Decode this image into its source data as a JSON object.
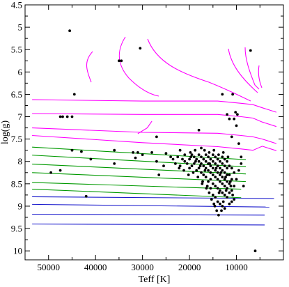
{
  "chart_data": {
    "type": "scatter",
    "title": "",
    "xlabel": "Teff [K]",
    "ylabel": "log(g)",
    "x_reversed": true,
    "y_reversed": true,
    "xlim": [
      55000,
      0
    ],
    "ylim": [
      4.5,
      10.2
    ],
    "grid": false,
    "legend": "none",
    "x_ticks": [
      50000,
      40000,
      30000,
      20000,
      10000
    ],
    "x_tick_labels": [
      "50000",
      "40000",
      "30000",
      "20000",
      "10000"
    ],
    "y_ticks": [
      4.5,
      5,
      5.5,
      6,
      6.5,
      7,
      7.5,
      8,
      8.5,
      9,
      9.5,
      10
    ],
    "y_tick_labels": [
      "4.5",
      "5",
      "5.5",
      "6",
      "6.5",
      "7",
      "7.5",
      "8",
      "8.5",
      "9",
      "9.5",
      "10"
    ],
    "colors": {
      "points": "#000000",
      "magenta": "#ff00ff",
      "green": "#009900",
      "blue": "#1a1acc",
      "axis": "#000000"
    },
    "series": [
      {
        "values_xy": [
          [
            45500,
            5.08
          ],
          [
            35000,
            5.75
          ],
          [
            34500,
            5.75
          ],
          [
            30500,
            5.47
          ],
          [
            7000,
            5.52
          ],
          [
            44500,
            6.5
          ],
          [
            47500,
            7.0
          ],
          [
            47000,
            7.0
          ],
          [
            46000,
            7.0
          ],
          [
            45000,
            7.0
          ],
          [
            13000,
            6.5
          ],
          [
            10800,
            6.5
          ],
          [
            10200,
            6.9
          ],
          [
            9800,
            6.95
          ],
          [
            11500,
            7.05
          ],
          [
            10500,
            7.05
          ],
          [
            12000,
            6.95
          ],
          [
            18000,
            7.3
          ],
          [
            10000,
            7.2
          ],
          [
            27000,
            7.45
          ],
          [
            49500,
            8.25
          ],
          [
            47500,
            8.2
          ],
          [
            45000,
            7.75
          ],
          [
            43000,
            7.78
          ],
          [
            41000,
            7.95
          ],
          [
            36000,
            7.75
          ],
          [
            36000,
            8.05
          ],
          [
            32000,
            7.8
          ],
          [
            31000,
            7.8
          ],
          [
            31500,
            7.92
          ],
          [
            30000,
            7.85
          ],
          [
            28000,
            7.8
          ],
          [
            27000,
            8.0
          ],
          [
            25000,
            7.82
          ],
          [
            22000,
            7.75
          ],
          [
            21000,
            8.0
          ],
          [
            42000,
            8.78
          ],
          [
            17500,
            7.7
          ],
          [
            11000,
            7.45
          ],
          [
            9500,
            7.6
          ],
          [
            9000,
            7.9
          ],
          [
            9500,
            8.2
          ],
          [
            10000,
            8.4
          ],
          [
            8500,
            8.55
          ],
          [
            9000,
            8.05
          ],
          [
            23500,
            7.95
          ],
          [
            23000,
            8.05
          ],
          [
            22500,
            7.9
          ],
          [
            22000,
            8.1
          ],
          [
            21500,
            7.95
          ],
          [
            21000,
            7.85
          ],
          [
            20500,
            8.05
          ],
          [
            20000,
            7.95
          ],
          [
            20000,
            8.15
          ],
          [
            19500,
            7.85
          ],
          [
            19500,
            8.1
          ],
          [
            19000,
            7.9
          ],
          [
            19000,
            8.05
          ],
          [
            18500,
            7.95
          ],
          [
            18500,
            8.2
          ],
          [
            18000,
            7.85
          ],
          [
            18000,
            8.0
          ],
          [
            18000,
            8.15
          ],
          [
            17500,
            7.9
          ],
          [
            17500,
            8.05
          ],
          [
            17500,
            8.25
          ],
          [
            17000,
            7.95
          ],
          [
            17000,
            8.1
          ],
          [
            17000,
            8.3
          ],
          [
            16500,
            7.85
          ],
          [
            16500,
            8.0
          ],
          [
            16500,
            8.15
          ],
          [
            16500,
            8.35
          ],
          [
            16000,
            7.9
          ],
          [
            16000,
            8.05
          ],
          [
            16000,
            8.2
          ],
          [
            16000,
            8.45
          ],
          [
            15500,
            7.95
          ],
          [
            15500,
            8.1
          ],
          [
            15500,
            8.25
          ],
          [
            15500,
            8.4
          ],
          [
            15500,
            8.6
          ],
          [
            15000,
            7.85
          ],
          [
            15000,
            8.0
          ],
          [
            15000,
            8.15
          ],
          [
            15000,
            8.3
          ],
          [
            15000,
            8.5
          ],
          [
            15000,
            8.75
          ],
          [
            14500,
            7.9
          ],
          [
            14500,
            8.05
          ],
          [
            14500,
            8.2
          ],
          [
            14500,
            8.35
          ],
          [
            14500,
            8.55
          ],
          [
            14500,
            8.8
          ],
          [
            14000,
            7.95
          ],
          [
            14000,
            8.1
          ],
          [
            14000,
            8.25
          ],
          [
            14000,
            8.4
          ],
          [
            14000,
            8.6
          ],
          [
            14000,
            8.9
          ],
          [
            13500,
            8.0
          ],
          [
            13500,
            8.15
          ],
          [
            13500,
            8.3
          ],
          [
            13500,
            8.45
          ],
          [
            13500,
            8.65
          ],
          [
            13500,
            8.95
          ],
          [
            13000,
            7.9
          ],
          [
            13000,
            8.05
          ],
          [
            13000,
            8.2
          ],
          [
            13000,
            8.35
          ],
          [
            13000,
            8.5
          ],
          [
            13000,
            8.7
          ],
          [
            13000,
            9.0
          ],
          [
            12500,
            7.95
          ],
          [
            12500,
            8.1
          ],
          [
            12500,
            8.25
          ],
          [
            12500,
            8.4
          ],
          [
            12500,
            8.55
          ],
          [
            12500,
            8.75
          ],
          [
            12500,
            9.05
          ],
          [
            12000,
            8.0
          ],
          [
            12000,
            8.15
          ],
          [
            12000,
            8.3
          ],
          [
            12000,
            8.45
          ],
          [
            12000,
            8.6
          ],
          [
            12000,
            8.8
          ],
          [
            11500,
            8.1
          ],
          [
            11500,
            8.3
          ],
          [
            11500,
            8.5
          ],
          [
            11500,
            8.7
          ],
          [
            11500,
            8.95
          ],
          [
            11000,
            8.15
          ],
          [
            11000,
            8.4
          ],
          [
            11000,
            8.65
          ],
          [
            11000,
            8.9
          ],
          [
            10500,
            8.25
          ],
          [
            10500,
            8.55
          ],
          [
            10500,
            8.85
          ],
          [
            14200,
            9.1
          ],
          [
            13800,
            9.2
          ],
          [
            13200,
            9.1
          ],
          [
            12800,
            8.9
          ],
          [
            14800,
            8.95
          ],
          [
            15800,
            8.7
          ],
          [
            16200,
            8.55
          ],
          [
            17200,
            8.45
          ],
          [
            18200,
            8.35
          ],
          [
            19200,
            8.25
          ],
          [
            20200,
            8.3
          ],
          [
            21200,
            8.2
          ],
          [
            22200,
            8.15
          ],
          [
            24000,
            7.9
          ],
          [
            25500,
            8.1
          ],
          [
            26500,
            8.3
          ],
          [
            16800,
            7.75
          ],
          [
            15800,
            7.8
          ],
          [
            14800,
            7.75
          ],
          [
            13800,
            7.85
          ],
          [
            12800,
            7.8
          ],
          [
            11800,
            7.9
          ],
          [
            19800,
            7.8
          ],
          [
            18800,
            7.75
          ],
          [
            17300,
            8.5
          ],
          [
            16400,
            8.6
          ],
          [
            15300,
            8.85
          ],
          [
            14600,
            9.0
          ],
          [
            13700,
            8.7
          ],
          [
            12200,
            8.65
          ],
          [
            11200,
            8.55
          ],
          [
            10800,
            8.75
          ],
          [
            15700,
            8.05
          ],
          [
            14300,
            8.15
          ],
          [
            13300,
            8.25
          ],
          [
            12300,
            8.35
          ],
          [
            11300,
            8.45
          ],
          [
            16700,
            8.2
          ],
          [
            17700,
            8.1
          ],
          [
            18700,
            8.0
          ],
          [
            19700,
            7.9
          ],
          [
            6000,
            10.0
          ]
        ]
      }
    ]
  }
}
